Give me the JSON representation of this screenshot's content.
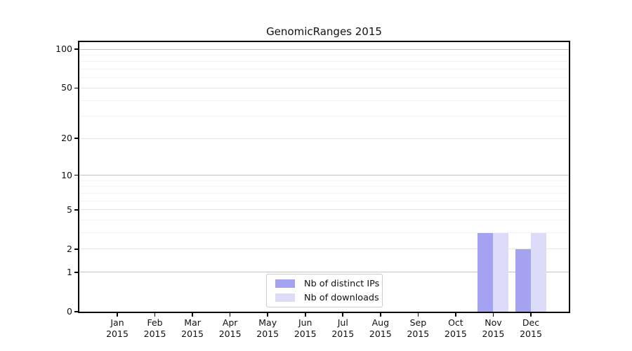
{
  "title": "GenomicRanges 2015",
  "chart_data": {
    "type": "bar",
    "title": "GenomicRanges 2015",
    "y_scale": "log1p",
    "ylim": [
      0,
      113
    ],
    "grid": true,
    "legend_position": "bottom-center",
    "y_ticks": [
      0,
      1,
      2,
      5,
      10,
      20,
      50,
      100
    ],
    "y_gridlines_emphasis": [
      1,
      10,
      100
    ],
    "y_gridlines_major": [
      2,
      5,
      20,
      50
    ],
    "y_gridlines_minor": [
      3,
      4,
      6,
      7,
      8,
      9,
      30,
      40,
      60,
      70,
      80,
      90
    ],
    "categories": [
      {
        "month": "Jan",
        "year": "2015"
      },
      {
        "month": "Feb",
        "year": "2015"
      },
      {
        "month": "Mar",
        "year": "2015"
      },
      {
        "month": "Apr",
        "year": "2015"
      },
      {
        "month": "May",
        "year": "2015"
      },
      {
        "month": "Jun",
        "year": "2015"
      },
      {
        "month": "Jul",
        "year": "2015"
      },
      {
        "month": "Aug",
        "year": "2015"
      },
      {
        "month": "Sep",
        "year": "2015"
      },
      {
        "month": "Oct",
        "year": "2015"
      },
      {
        "month": "Nov",
        "year": "2015"
      },
      {
        "month": "Dec",
        "year": "2015"
      }
    ],
    "series": [
      {
        "name": "Nb of distinct IPs",
        "slug": "distinct-ips",
        "color": "#a3a3f2",
        "values": [
          0,
          0,
          0,
          0,
          0,
          0,
          0,
          0,
          0,
          0,
          3,
          2
        ]
      },
      {
        "name": "Nb of downloads",
        "slug": "downloads",
        "color": "#dcdcf9",
        "values": [
          0,
          0,
          0,
          0,
          0,
          0,
          0,
          0,
          0,
          0,
          3,
          3
        ]
      }
    ]
  }
}
